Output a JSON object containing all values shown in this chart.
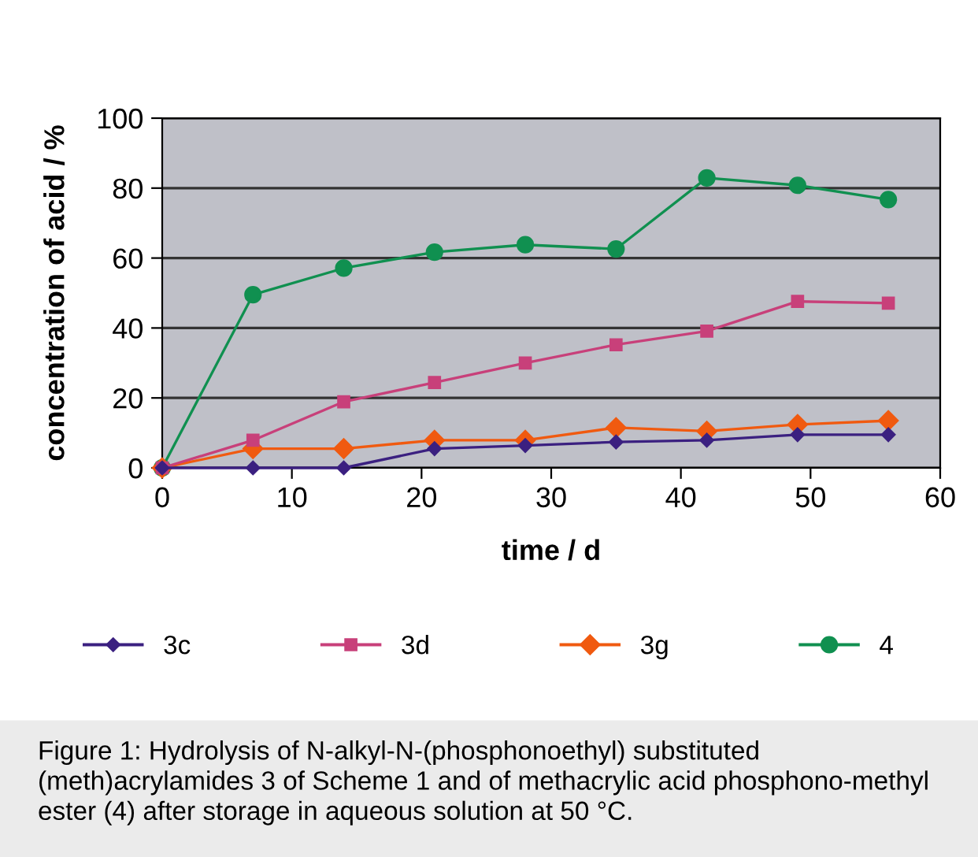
{
  "chart_data": {
    "type": "line",
    "xlabel": "time / d",
    "ylabel": "concentration of acid / %",
    "x": [
      0,
      7,
      14,
      21,
      28,
      35,
      42,
      49,
      56
    ],
    "series": [
      {
        "name": "3c",
        "color": "#3b2080",
        "marker": "diamond",
        "values": [
          0,
          0,
          0,
          5.5,
          6.4,
          7.4,
          7.9,
          9.5,
          9.5
        ]
      },
      {
        "name": "3d",
        "color": "#c8407a",
        "marker": "square",
        "values": [
          0,
          7.9,
          18.9,
          24.4,
          30,
          35.2,
          39.1,
          47.6,
          47.1
        ]
      },
      {
        "name": "3g",
        "color": "#f05a10",
        "marker": "diamond",
        "values": [
          0,
          5.5,
          5.5,
          7.9,
          7.9,
          11.5,
          10.5,
          12.4,
          13.5
        ]
      },
      {
        "name": "4",
        "color": "#109050",
        "marker": "circle",
        "values": [
          0,
          49.5,
          57.1,
          61.7,
          63.8,
          62.6,
          82.9,
          80.8,
          76.7
        ]
      }
    ],
    "xlim": [
      0,
      60
    ],
    "xticks": [
      0,
      10,
      20,
      30,
      40,
      50,
      60
    ],
    "ylim": [
      0,
      100
    ],
    "yticks": [
      0,
      20,
      40,
      60,
      80,
      100
    ],
    "grid": "y",
    "legend": "bottom",
    "line_style": "solid",
    "annotations": [
      "Figure 1: Hydrolysis of N-alkyl-N-(phosphonoethyl) substituted (meth)acrylamides 3 of Scheme 1 and of methacrylic acid phosphono-methyl ester (4) after storage in aqueous solution at 50 °C."
    ]
  }
}
